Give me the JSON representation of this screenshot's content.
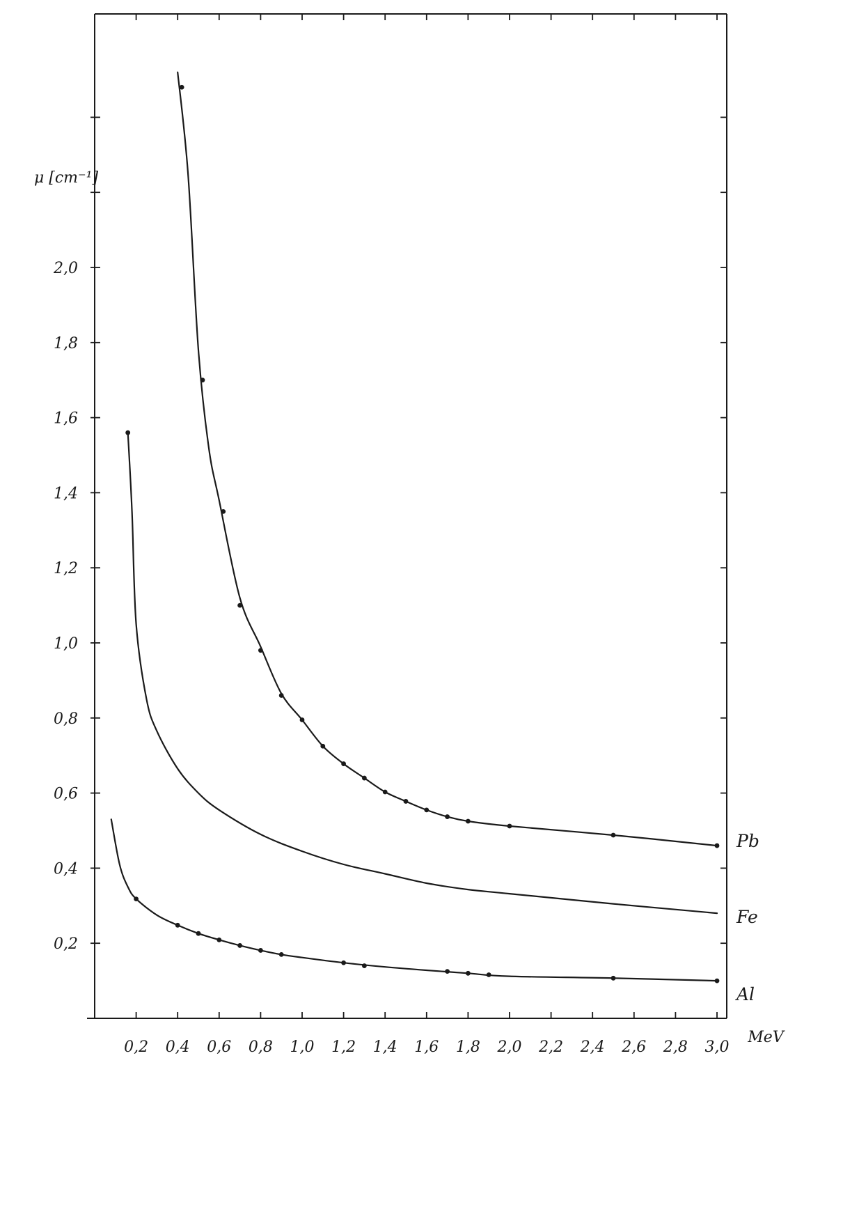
{
  "chart_data": {
    "type": "line",
    "xlabel": "MeV",
    "ylabel": "μ [cm⁻¹]",
    "xlim": [
      0,
      3.0
    ],
    "ylim": [
      0,
      2.6
    ],
    "grid": false,
    "x_ticks": [
      0.2,
      0.4,
      0.6,
      0.8,
      1.0,
      1.2,
      1.4,
      1.6,
      1.8,
      2.0,
      2.2,
      2.4,
      2.6,
      2.8,
      3.0
    ],
    "x_tick_labels": [
      "0,2",
      "0,4",
      "0,6",
      "0,8",
      "1,0",
      "1,2",
      "1,4",
      "1,6",
      "1,8",
      "2,0",
      "2,2",
      "2,4",
      "2,6",
      "2,8",
      "3,0"
    ],
    "y_ticks": [
      0.2,
      0.4,
      0.6,
      0.8,
      1.0,
      1.2,
      1.4,
      1.6,
      1.8,
      2.0
    ],
    "y_tick_labels": [
      "0,2",
      "0,4",
      "0,6",
      "0,8",
      "1,0",
      "1,2",
      "1,4",
      "1,6",
      "1,8",
      "2,0"
    ],
    "series": [
      {
        "name": "Pb",
        "color": "#1a1a1a",
        "curve": [
          [
            0.4,
            2.52
          ],
          [
            0.45,
            2.25
          ],
          [
            0.5,
            1.78
          ],
          [
            0.55,
            1.52
          ],
          [
            0.6,
            1.38
          ],
          [
            0.7,
            1.12
          ],
          [
            0.8,
            0.99
          ],
          [
            0.9,
            0.865
          ],
          [
            1.0,
            0.795
          ],
          [
            1.1,
            0.725
          ],
          [
            1.2,
            0.678
          ],
          [
            1.3,
            0.64
          ],
          [
            1.4,
            0.603
          ],
          [
            1.5,
            0.578
          ],
          [
            1.6,
            0.555
          ],
          [
            1.7,
            0.537
          ],
          [
            1.8,
            0.525
          ],
          [
            2.0,
            0.512
          ],
          [
            2.5,
            0.488
          ],
          [
            3.0,
            0.46
          ]
        ],
        "points": [
          [
            0.42,
            2.48
          ],
          [
            0.52,
            1.7
          ],
          [
            0.62,
            1.35
          ],
          [
            0.7,
            1.1
          ],
          [
            0.8,
            0.98
          ],
          [
            0.9,
            0.86
          ],
          [
            1.0,
            0.795
          ],
          [
            1.1,
            0.725
          ],
          [
            1.2,
            0.678
          ],
          [
            1.3,
            0.64
          ],
          [
            1.4,
            0.603
          ],
          [
            1.5,
            0.578
          ],
          [
            1.6,
            0.555
          ],
          [
            1.7,
            0.537
          ],
          [
            1.8,
            0.525
          ],
          [
            2.0,
            0.512
          ],
          [
            2.5,
            0.488
          ],
          [
            3.0,
            0.46
          ]
        ]
      },
      {
        "name": "Fe",
        "color": "#1a1a1a",
        "curve": [
          [
            0.16,
            1.56
          ],
          [
            0.18,
            1.35
          ],
          [
            0.2,
            1.05
          ],
          [
            0.25,
            0.85
          ],
          [
            0.3,
            0.765
          ],
          [
            0.4,
            0.665
          ],
          [
            0.5,
            0.6
          ],
          [
            0.6,
            0.555
          ],
          [
            0.8,
            0.49
          ],
          [
            1.0,
            0.445
          ],
          [
            1.2,
            0.41
          ],
          [
            1.4,
            0.385
          ],
          [
            1.6,
            0.36
          ],
          [
            1.8,
            0.343
          ],
          [
            2.0,
            0.332
          ],
          [
            2.5,
            0.305
          ],
          [
            3.0,
            0.28
          ]
        ],
        "points": [
          [
            0.16,
            1.56
          ]
        ]
      },
      {
        "name": "Al",
        "color": "#1a1a1a",
        "curve": [
          [
            0.08,
            0.53
          ],
          [
            0.12,
            0.41
          ],
          [
            0.16,
            0.35
          ],
          [
            0.2,
            0.318
          ],
          [
            0.3,
            0.275
          ],
          [
            0.4,
            0.248
          ],
          [
            0.5,
            0.226
          ],
          [
            0.6,
            0.209
          ],
          [
            0.7,
            0.194
          ],
          [
            0.8,
            0.181
          ],
          [
            0.9,
            0.17
          ],
          [
            1.0,
            0.162
          ],
          [
            1.2,
            0.148
          ],
          [
            1.4,
            0.137
          ],
          [
            1.6,
            0.128
          ],
          [
            1.8,
            0.12
          ],
          [
            2.0,
            0.112
          ],
          [
            2.5,
            0.107
          ],
          [
            3.0,
            0.1
          ]
        ],
        "points": [
          [
            0.2,
            0.318
          ],
          [
            0.4,
            0.248
          ],
          [
            0.5,
            0.226
          ],
          [
            0.6,
            0.209
          ],
          [
            0.7,
            0.194
          ],
          [
            0.8,
            0.181
          ],
          [
            0.9,
            0.17
          ],
          [
            1.2,
            0.148
          ],
          [
            1.3,
            0.14
          ],
          [
            1.7,
            0.125
          ],
          [
            1.8,
            0.12
          ],
          [
            1.9,
            0.116
          ],
          [
            2.5,
            0.107
          ],
          [
            3.0,
            0.1
          ]
        ]
      }
    ]
  }
}
